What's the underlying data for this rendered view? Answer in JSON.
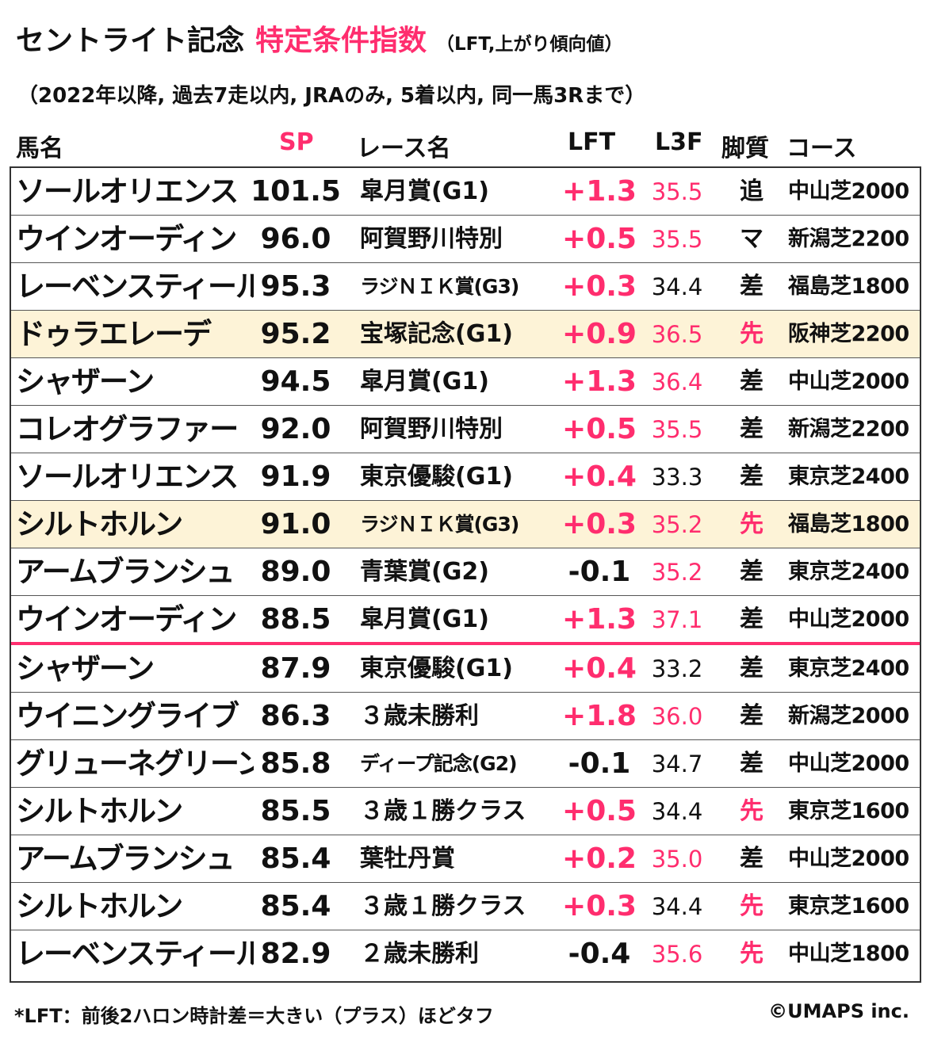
{
  "title": {
    "main": "セントライト記念",
    "accent": "特定条件指数",
    "note": "（LFT,上がり傾向値）"
  },
  "subtitle": "（2022年以降, 過去7走以内, JRAのみ, 5着以内, 同一馬3Rまで）",
  "headers": {
    "name": "馬名",
    "sp": "SP",
    "race": "レース名",
    "lft": "LFT",
    "l3f": "L3F",
    "style": "脚質",
    "course": "コース"
  },
  "colors": {
    "accent": "#ff2d6e",
    "highlight_row": "#fdf3d7",
    "text": "#111111"
  },
  "rows": [
    {
      "name": "ソールオリエンス",
      "sp": "101.5",
      "race": "皐月賞(G1)",
      "lft": "+1.3",
      "lft_color": "accent",
      "l3f": "35.5",
      "l3f_color": "accent",
      "style": "追",
      "style_color": "normal",
      "course": "中山芝2000",
      "highlight": false,
      "race_small": false
    },
    {
      "name": "ウインオーディン",
      "sp": "96.0",
      "race": "阿賀野川特別",
      "lft": "+0.5",
      "lft_color": "accent",
      "l3f": "35.5",
      "l3f_color": "accent",
      "style": "マ",
      "style_color": "normal",
      "course": "新潟芝2200",
      "highlight": false,
      "race_small": false
    },
    {
      "name": "レーベンスティール",
      "sp": "95.3",
      "race": "ラジＮＩＫ賞(G3)",
      "lft": "+0.3",
      "lft_color": "accent",
      "l3f": "34.4",
      "l3f_color": "normal",
      "style": "差",
      "style_color": "normal",
      "course": "福島芝1800",
      "highlight": false,
      "race_small": true
    },
    {
      "name": "ドゥラエレーデ",
      "sp": "95.2",
      "race": "宝塚記念(G1)",
      "lft": "+0.9",
      "lft_color": "accent",
      "l3f": "36.5",
      "l3f_color": "accent",
      "style": "先",
      "style_color": "accent",
      "course": "阪神芝2200",
      "highlight": true,
      "race_small": false
    },
    {
      "name": "シャザーン",
      "sp": "94.5",
      "race": "皐月賞(G1)",
      "lft": "+1.3",
      "lft_color": "accent",
      "l3f": "36.4",
      "l3f_color": "accent",
      "style": "差",
      "style_color": "normal",
      "course": "中山芝2000",
      "highlight": false,
      "race_small": false
    },
    {
      "name": "コレオグラファー",
      "sp": "92.0",
      "race": "阿賀野川特別",
      "lft": "+0.5",
      "lft_color": "accent",
      "l3f": "35.5",
      "l3f_color": "accent",
      "style": "差",
      "style_color": "normal",
      "course": "新潟芝2200",
      "highlight": false,
      "race_small": false
    },
    {
      "name": "ソールオリエンス",
      "sp": "91.9",
      "race": "東京優駿(G1)",
      "lft": "+0.4",
      "lft_color": "accent",
      "l3f": "33.3",
      "l3f_color": "normal",
      "style": "差",
      "style_color": "normal",
      "course": "東京芝2400",
      "highlight": false,
      "race_small": false
    },
    {
      "name": "シルトホルン",
      "sp": "91.0",
      "race": "ラジＮＩＫ賞(G3)",
      "lft": "+0.3",
      "lft_color": "accent",
      "l3f": "35.2",
      "l3f_color": "accent",
      "style": "先",
      "style_color": "accent",
      "course": "福島芝1800",
      "highlight": true,
      "race_small": true
    },
    {
      "name": "アームブランシュ",
      "sp": "89.0",
      "race": "青葉賞(G2)",
      "lft": "-0.1",
      "lft_color": "normal",
      "l3f": "35.2",
      "l3f_color": "accent",
      "style": "差",
      "style_color": "normal",
      "course": "東京芝2400",
      "highlight": false,
      "race_small": false
    },
    {
      "name": "ウインオーディン",
      "sp": "88.5",
      "race": "皐月賞(G1)",
      "lft": "+1.3",
      "lft_color": "accent",
      "l3f": "37.1",
      "l3f_color": "accent",
      "style": "差",
      "style_color": "normal",
      "course": "中山芝2000",
      "highlight": false,
      "race_small": false
    },
    {
      "name": "シャザーン",
      "sp": "87.9",
      "race": "東京優駿(G1)",
      "lft": "+0.4",
      "lft_color": "accent",
      "l3f": "33.2",
      "l3f_color": "normal",
      "style": "差",
      "style_color": "normal",
      "course": "東京芝2400",
      "highlight": false,
      "race_small": false
    },
    {
      "name": "ウイニングライブ",
      "sp": "86.3",
      "race": "３歳未勝利",
      "lft": "+1.8",
      "lft_color": "accent",
      "l3f": "36.0",
      "l3f_color": "accent",
      "style": "差",
      "style_color": "normal",
      "course": "新潟芝2000",
      "highlight": false,
      "race_small": false
    },
    {
      "name": "グリューネグリーン",
      "sp": "85.8",
      "race": "ディープ記念(G2)",
      "lft": "-0.1",
      "lft_color": "normal",
      "l3f": "34.7",
      "l3f_color": "normal",
      "style": "差",
      "style_color": "normal",
      "course": "中山芝2000",
      "highlight": false,
      "race_small": true
    },
    {
      "name": "シルトホルン",
      "sp": "85.5",
      "race": "３歳１勝クラス",
      "lft": "+0.5",
      "lft_color": "accent",
      "l3f": "34.4",
      "l3f_color": "normal",
      "style": "先",
      "style_color": "accent",
      "course": "東京芝1600",
      "highlight": false,
      "race_small": false
    },
    {
      "name": "アームブランシュ",
      "sp": "85.4",
      "race": "葉牡丹賞",
      "lft": "+0.2",
      "lft_color": "accent",
      "l3f": "35.0",
      "l3f_color": "accent",
      "style": "差",
      "style_color": "normal",
      "course": "中山芝2000",
      "highlight": false,
      "race_small": false
    },
    {
      "name": "シルトホルン",
      "sp": "85.4",
      "race": "３歳１勝クラス",
      "lft": "+0.3",
      "lft_color": "accent",
      "l3f": "34.4",
      "l3f_color": "normal",
      "style": "先",
      "style_color": "accent",
      "course": "東京芝1600",
      "highlight": false,
      "race_small": false
    },
    {
      "name": "レーベンスティール",
      "sp": "82.9",
      "race": "２歳未勝利",
      "lft": "-0.4",
      "lft_color": "normal",
      "l3f": "35.6",
      "l3f_color": "accent",
      "style": "先",
      "style_color": "accent",
      "course": "中山芝1800",
      "highlight": false,
      "race_small": false
    }
  ],
  "footer": {
    "note": "*LFT：前後2ハロン時計差＝大きい（プラス）ほどタフ",
    "copyright": "©UMAPS inc."
  }
}
